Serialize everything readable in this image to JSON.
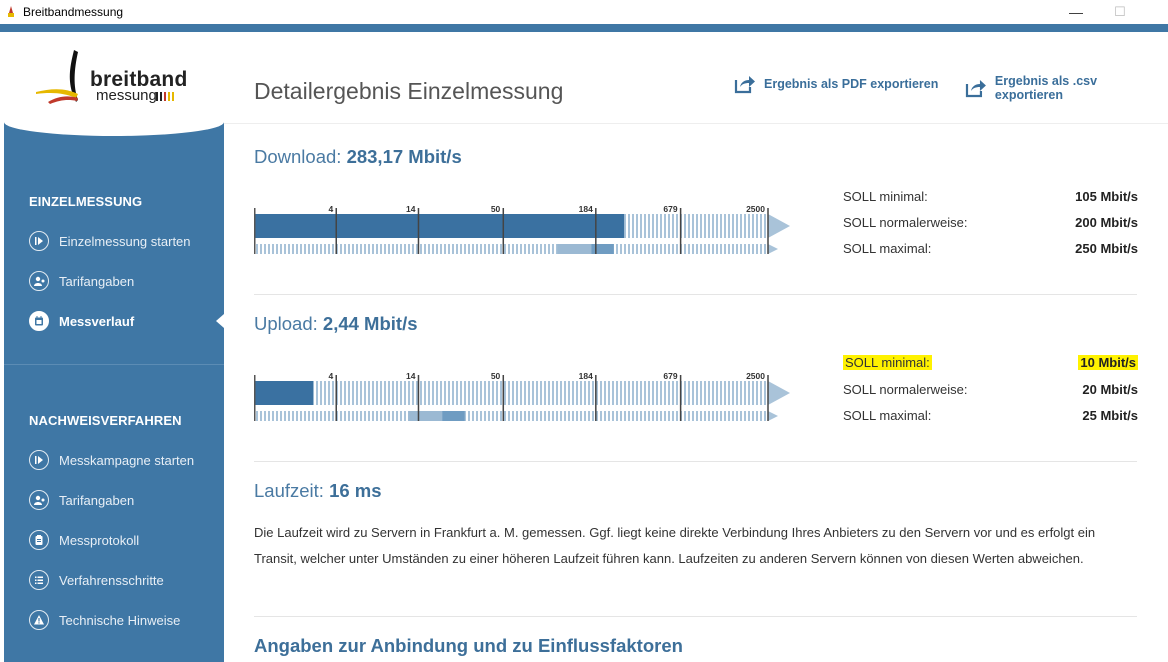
{
  "window": {
    "title": "Breitbandmessung",
    "minimize": "—",
    "maximize": "☐"
  },
  "logo": {
    "word1": "breitband",
    "word2": "messung"
  },
  "sidebar": {
    "section1": "EINZELMESSUNG",
    "items1": [
      {
        "label": "Einzelmessung starten",
        "icon": "play-circle-icon"
      },
      {
        "label": "Tarifangaben",
        "icon": "user-settings-icon"
      },
      {
        "label": "Messverlauf",
        "icon": "calendar-icon",
        "active": true
      }
    ],
    "section2": "NACHWEISVERFAHREN",
    "items2": [
      {
        "label": "Messkampagne starten",
        "icon": "play-circle-icon"
      },
      {
        "label": "Tarifangaben",
        "icon": "user-settings-icon"
      },
      {
        "label": "Messprotokoll",
        "icon": "clipboard-icon"
      },
      {
        "label": "Verfahrensschritte",
        "icon": "list-icon"
      },
      {
        "label": "Technische Hinweise",
        "icon": "warning-icon"
      }
    ]
  },
  "header": {
    "title": "Detailergebnis Einzelmessung",
    "export_pdf": "Ergebnis als PDF exportieren",
    "export_csv": "Ergebnis als .csv exportieren"
  },
  "download": {
    "label": "Download:",
    "value": "283,17 Mbit/s",
    "ticks": [
      "4",
      "14",
      "50",
      "184",
      "679",
      "2500"
    ],
    "measured_fraction": 0.72,
    "range_fraction": [
      0.59,
      0.7
    ],
    "soll": [
      {
        "label": "SOLL minimal:",
        "value": "105 Mbit/s"
      },
      {
        "label": "SOLL normalerweise:",
        "value": "200 Mbit/s"
      },
      {
        "label": "SOLL maximal:",
        "value": "250 Mbit/s"
      }
    ]
  },
  "upload": {
    "label": "Upload:",
    "value": "2,44 Mbit/s",
    "ticks": [
      "4",
      "14",
      "50",
      "184",
      "679",
      "2500"
    ],
    "measured_fraction": 0.115,
    "range_fraction": [
      0.3,
      0.41
    ],
    "soll": [
      {
        "label": "SOLL minimal:",
        "value": "10 Mbit/s",
        "highlight": true
      },
      {
        "label": "SOLL normalerweise:",
        "value": "20 Mbit/s"
      },
      {
        "label": "SOLL maximal:",
        "value": "25 Mbit/s"
      }
    ]
  },
  "laufzeit": {
    "label": "Laufzeit:",
    "value": "16 ms",
    "text": "Die Laufzeit wird zu Servern in Frankfurt a. M. gemessen. Ggf. liegt keine direkte Verbindung Ihres Anbieters zu den Servern vor und es erfolgt ein Transit, welcher unter Umständen zu einer höheren Laufzeit führen kann. Laufzeiten zu anderen Servern können von diesen Werten abweichen."
  },
  "bottom_heading": "Angaben zur Anbindung und zu Einflussfaktoren",
  "colors": {
    "accent": "#3f77a5",
    "bar_dark": "#3a71a1",
    "bar_light": "#a9c3d9",
    "highlight": "#fff200"
  }
}
